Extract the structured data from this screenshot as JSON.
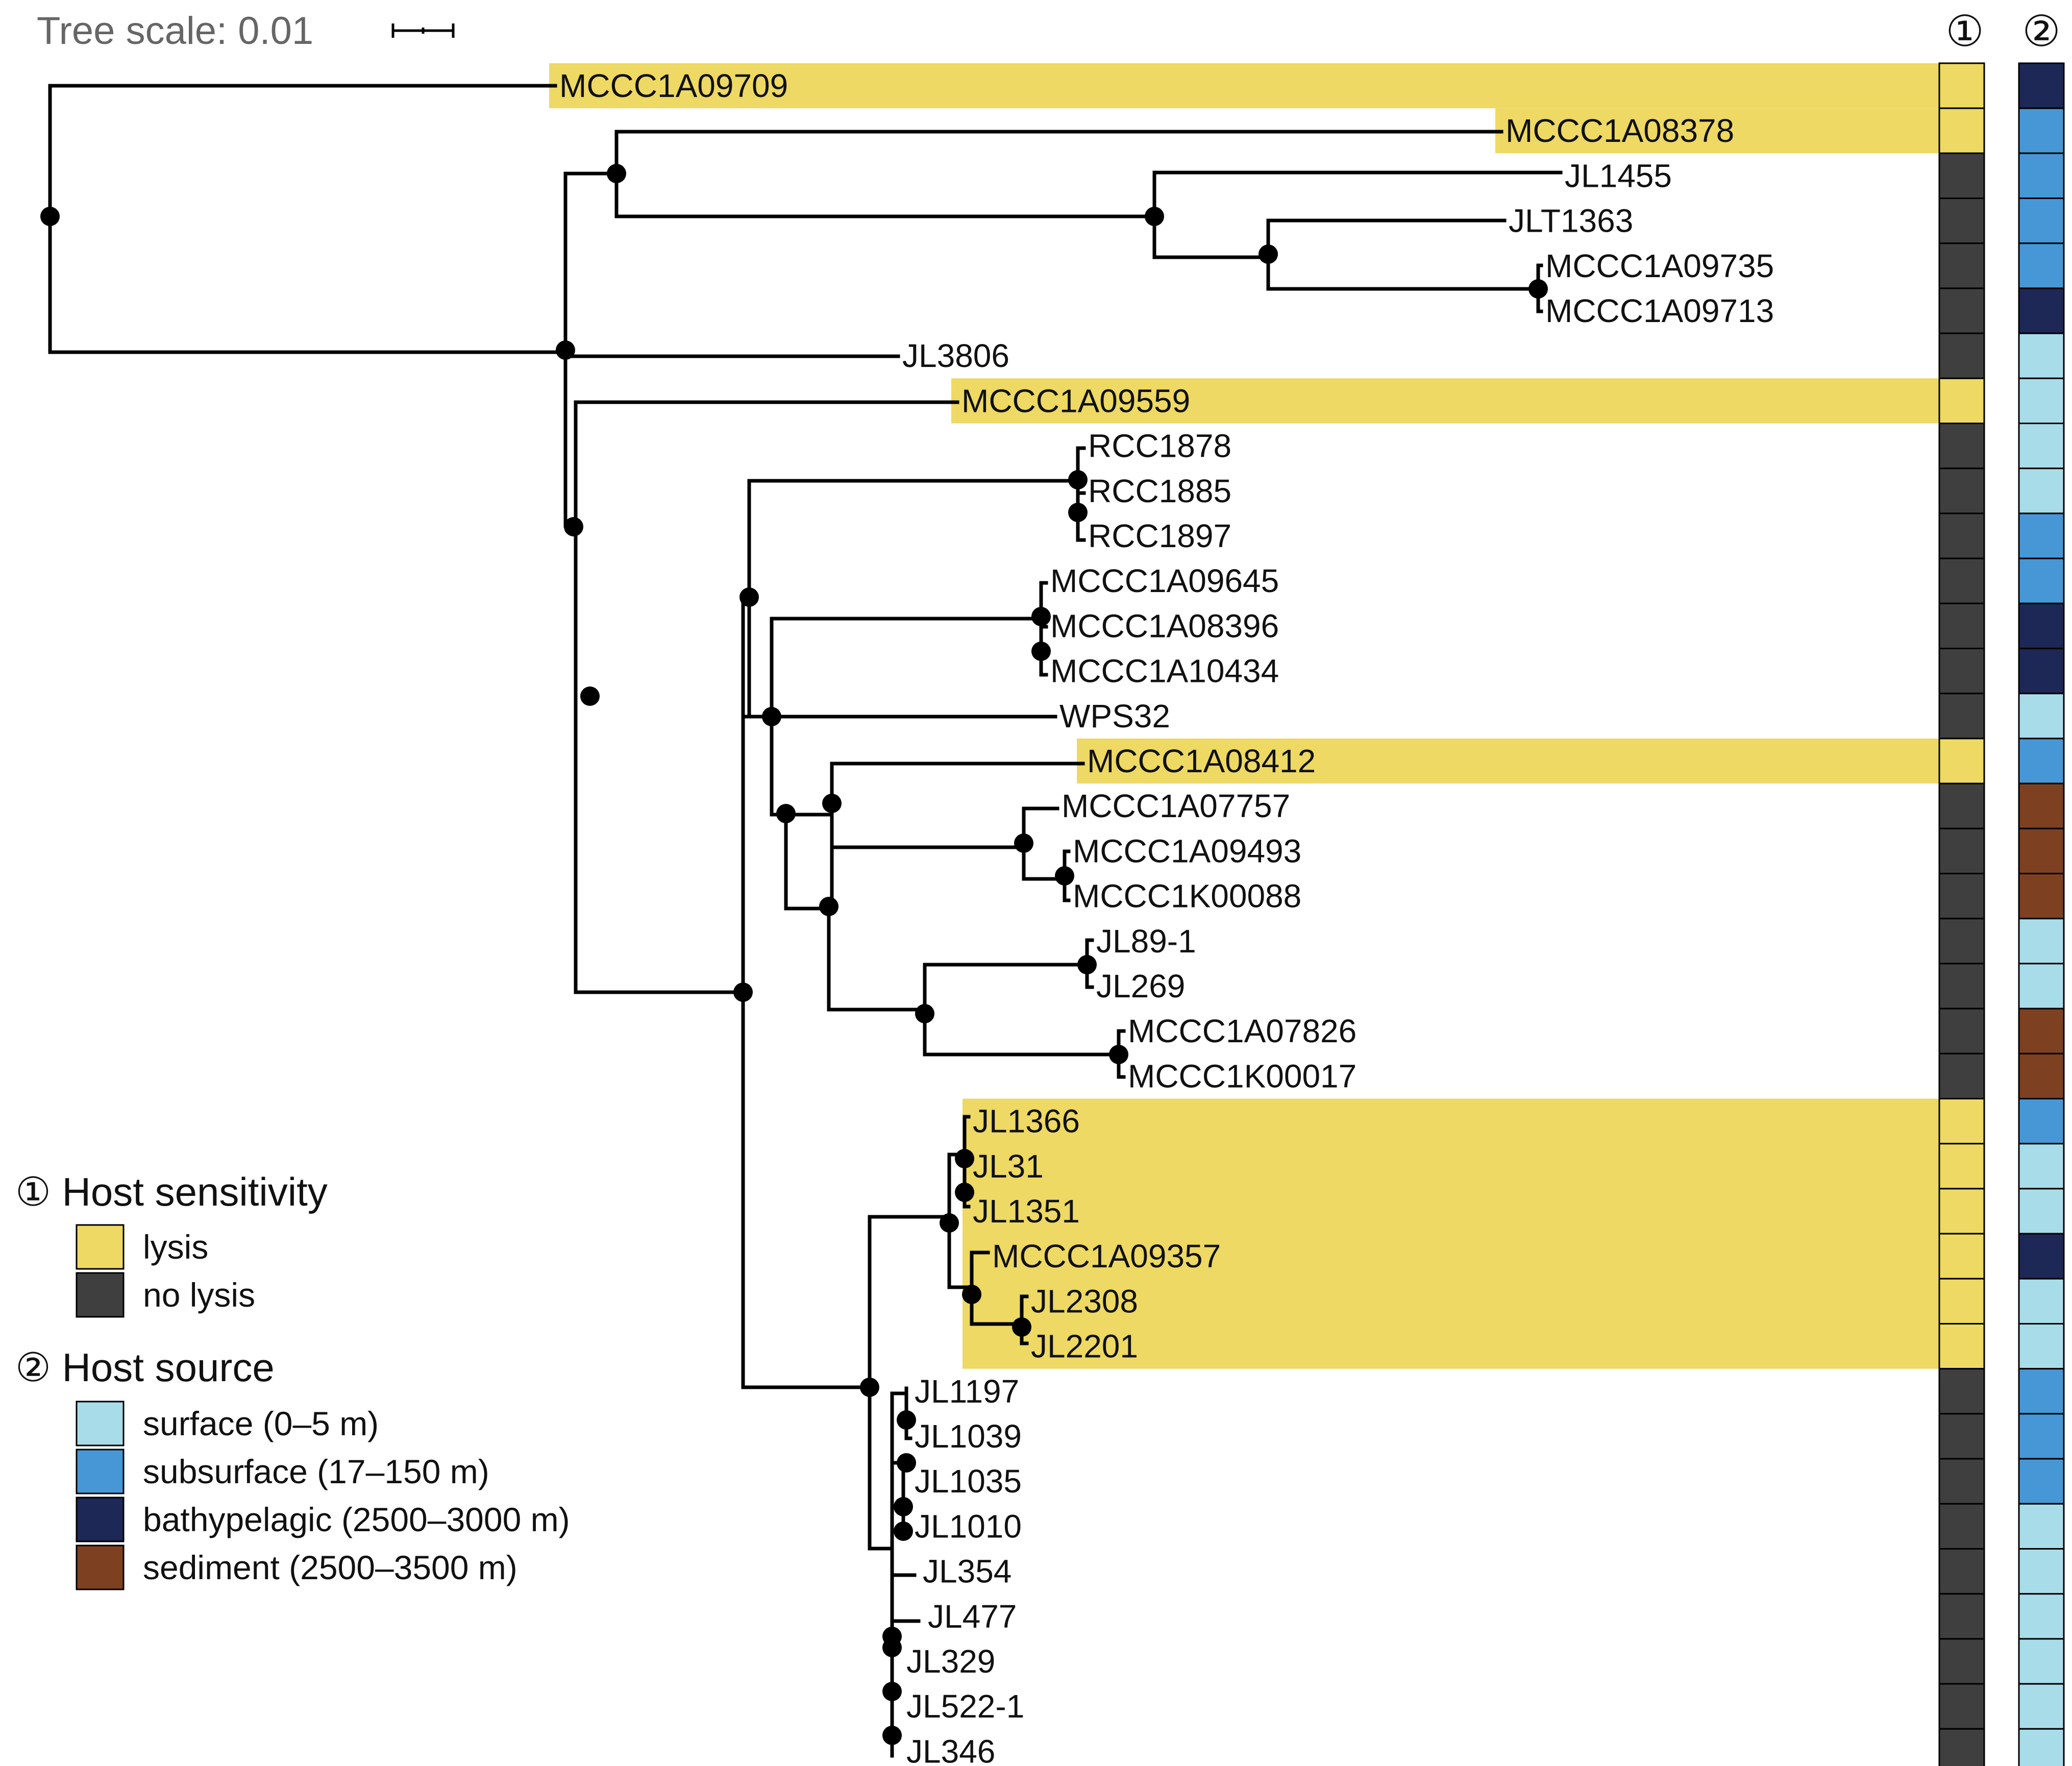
{
  "scale": {
    "label": "Tree scale: 0.01"
  },
  "columns": {
    "sensitivity_header": "①",
    "source_header": "②"
  },
  "colors": {
    "highlight": "#EDD963",
    "lysis": "#EDD963",
    "no_lysis": "#3F3F3F",
    "surface": "#A9DCE9",
    "subsurface": "#4797D6",
    "bathypelagic": "#1D2857",
    "sediment": "#7D4122"
  },
  "legend": {
    "sensitivity_title": "① Host sensitivity",
    "sensitivity_items": [
      {
        "key": "lysis",
        "label": "lysis"
      },
      {
        "key": "no_lysis",
        "label": "no lysis"
      }
    ],
    "source_title": "② Host source",
    "source_items": [
      {
        "key": "surface",
        "label": "surface (0–5 m)"
      },
      {
        "key": "subsurface",
        "label": "subsurface (17–150 m)"
      },
      {
        "key": "bathypelagic",
        "label": "bathypelagic (2500–3000 m)"
      },
      {
        "key": "sediment",
        "label": "sediment (2500–3500 m)"
      }
    ]
  },
  "taxa": [
    {
      "name": "MCCC1A09709",
      "sensitivity": "lysis",
      "source": "bathypelagic"
    },
    {
      "name": "MCCC1A08378",
      "sensitivity": "lysis",
      "source": "subsurface"
    },
    {
      "name": "JL1455",
      "sensitivity": "no_lysis",
      "source": "subsurface"
    },
    {
      "name": "JLT1363",
      "sensitivity": "no_lysis",
      "source": "subsurface"
    },
    {
      "name": "MCCC1A09735",
      "sensitivity": "no_lysis",
      "source": "subsurface"
    },
    {
      "name": "MCCC1A09713",
      "sensitivity": "no_lysis",
      "source": "bathypelagic"
    },
    {
      "name": "JL3806",
      "sensitivity": "no_lysis",
      "source": "surface"
    },
    {
      "name": "MCCC1A09559",
      "sensitivity": "lysis",
      "source": "surface"
    },
    {
      "name": "RCC1878",
      "sensitivity": "no_lysis",
      "source": "surface"
    },
    {
      "name": "RCC1885",
      "sensitivity": "no_lysis",
      "source": "surface"
    },
    {
      "name": "RCC1897",
      "sensitivity": "no_lysis",
      "source": "subsurface"
    },
    {
      "name": "MCCC1A09645",
      "sensitivity": "no_lysis",
      "source": "subsurface"
    },
    {
      "name": "MCCC1A08396",
      "sensitivity": "no_lysis",
      "source": "bathypelagic"
    },
    {
      "name": "MCCC1A10434",
      "sensitivity": "no_lysis",
      "source": "bathypelagic"
    },
    {
      "name": "WPS32",
      "sensitivity": "no_lysis",
      "source": "surface"
    },
    {
      "name": "MCCC1A08412",
      "sensitivity": "lysis",
      "source": "subsurface"
    },
    {
      "name": "MCCC1A07757",
      "sensitivity": "no_lysis",
      "source": "sediment"
    },
    {
      "name": "MCCC1A09493",
      "sensitivity": "no_lysis",
      "source": "sediment"
    },
    {
      "name": "MCCC1K00088",
      "sensitivity": "no_lysis",
      "source": "sediment"
    },
    {
      "name": "JL89-1",
      "sensitivity": "no_lysis",
      "source": "surface"
    },
    {
      "name": "JL269",
      "sensitivity": "no_lysis",
      "source": "surface"
    },
    {
      "name": "MCCC1A07826",
      "sensitivity": "no_lysis",
      "source": "sediment"
    },
    {
      "name": "MCCC1K00017",
      "sensitivity": "no_lysis",
      "source": "sediment"
    },
    {
      "name": "JL1366",
      "sensitivity": "lysis",
      "source": "subsurface"
    },
    {
      "name": "JL31",
      "sensitivity": "lysis",
      "source": "surface"
    },
    {
      "name": "JL1351",
      "sensitivity": "lysis",
      "source": "surface"
    },
    {
      "name": "MCCC1A09357",
      "sensitivity": "lysis",
      "source": "bathypelagic"
    },
    {
      "name": "JL2308",
      "sensitivity": "lysis",
      "source": "surface"
    },
    {
      "name": "JL2201",
      "sensitivity": "lysis",
      "source": "surface"
    },
    {
      "name": "JL1197",
      "sensitivity": "no_lysis",
      "source": "subsurface"
    },
    {
      "name": "JL1039",
      "sensitivity": "no_lysis",
      "source": "subsurface"
    },
    {
      "name": "JL1035",
      "sensitivity": "no_lysis",
      "source": "subsurface"
    },
    {
      "name": "JL1010",
      "sensitivity": "no_lysis",
      "source": "surface"
    },
    {
      "name": "JL354",
      "sensitivity": "no_lysis",
      "source": "surface"
    },
    {
      "name": "JL477",
      "sensitivity": "no_lysis",
      "source": "surface"
    },
    {
      "name": "JL329",
      "sensitivity": "no_lysis",
      "source": "surface"
    },
    {
      "name": "JL522-1",
      "sensitivity": "no_lysis",
      "source": "surface"
    },
    {
      "name": "JL346",
      "sensitivity": "no_lysis",
      "source": "surface"
    }
  ]
}
